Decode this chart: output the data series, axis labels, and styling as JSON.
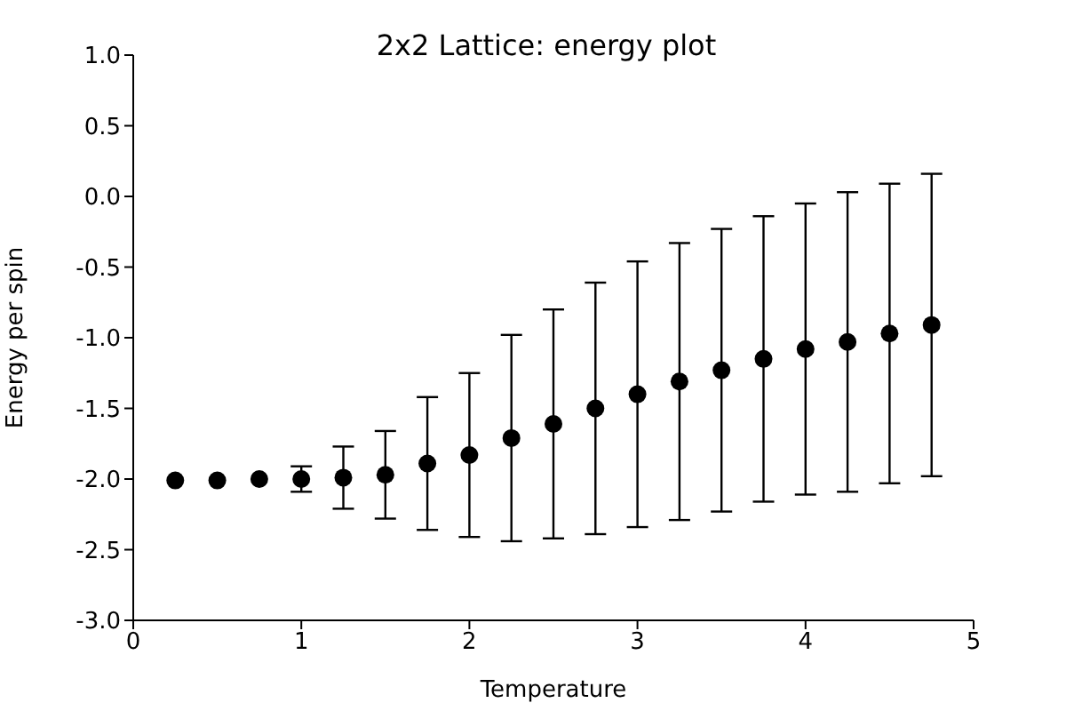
{
  "chart_data": {
    "type": "scatter",
    "title": "2x2 Lattice: energy plot",
    "xlabel": "Temperature",
    "ylabel": "Energy per spin",
    "x": [
      0.25,
      0.5,
      0.75,
      1.0,
      1.25,
      1.5,
      1.75,
      2.0,
      2.25,
      2.5,
      2.75,
      3.0,
      3.25,
      3.5,
      3.75,
      4.0,
      4.25,
      4.5,
      4.75
    ],
    "series": [
      {
        "color": "#000000",
        "values": [
          -2.01,
          -2.01,
          -2.0,
          -2.0,
          -1.99,
          -1.97,
          -1.89,
          -1.83,
          -1.71,
          -1.61,
          -1.5,
          -1.4,
          -1.31,
          -1.23,
          -1.15,
          -1.08,
          -1.03,
          -0.97,
          -0.91
        ],
        "errors": [
          null,
          null,
          null,
          0.09,
          0.22,
          0.31,
          0.47,
          0.58,
          0.73,
          0.81,
          0.89,
          0.94,
          0.98,
          1.0,
          1.01,
          1.03,
          1.06,
          1.06,
          1.07
        ]
      }
    ],
    "xlim": [
      0,
      5
    ],
    "xticks": [
      0,
      1,
      2,
      3,
      4,
      5
    ],
    "ylim": [
      -3,
      1
    ],
    "yticks": [
      {
        "value": -3,
        "label": "-3.0"
      },
      -2.5,
      {
        "value": -2,
        "label": "-2.0"
      },
      -1.5,
      {
        "value": -1,
        "label": "-1.0"
      },
      -0.5,
      {
        "value": 0,
        "label": "0.0"
      },
      0.5,
      {
        "value": 1,
        "label": "1.0"
      }
    ],
    "marker": "circle",
    "grid": false,
    "legend": false
  }
}
